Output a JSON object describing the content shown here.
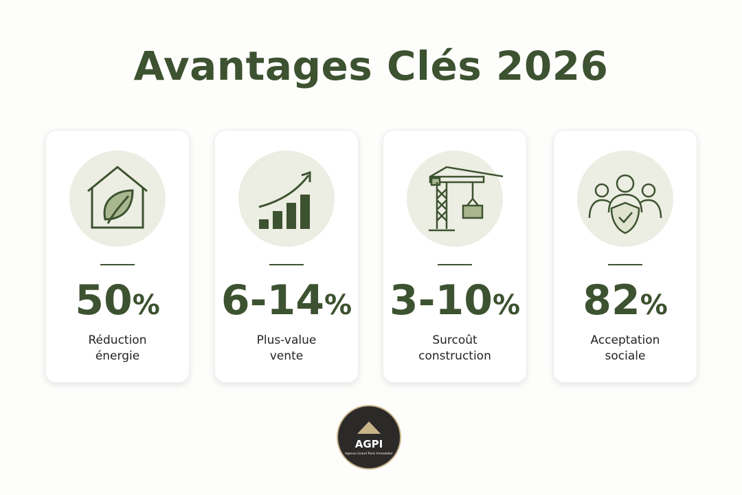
{
  "header": {
    "title": "Avantages Clés 2026"
  },
  "cards": [
    {
      "value": "50",
      "unit": "%",
      "label_lines": [
        "Réduction",
        "énergie"
      ]
    },
    {
      "value": "6-14",
      "unit": "%",
      "label_lines": [
        "Plus-value",
        "vente"
      ]
    },
    {
      "value": "3-10",
      "unit": "%",
      "label_lines": [
        "Surcoût",
        "construction"
      ]
    },
    {
      "value": "82",
      "unit": "%",
      "label_lines": [
        "Acceptation",
        "sociale"
      ]
    }
  ],
  "logo": {
    "name": "AGPI",
    "tagline": "Agence Grand Paris Immobilier"
  }
}
